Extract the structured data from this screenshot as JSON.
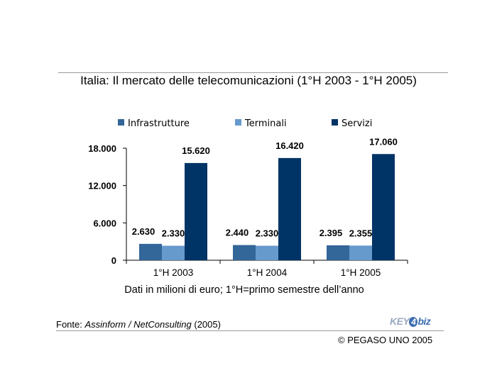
{
  "header": {
    "title": "Italia: Il mercato delle telecomunicazioni (1°H 2003 - 1°H 2005)"
  },
  "chart_data": {
    "type": "bar",
    "title": "Italia: Il mercato delle telecomunicazioni (1°H 2003 - 1°H 2005)",
    "subtitle": "Dati in milioni di euro; 1°H=primo semestre dell’anno",
    "categories": [
      "1°H 2003",
      "1°H 2004",
      "1°H 2005"
    ],
    "series": [
      {
        "name": "Infrastrutture",
        "values": [
          2630,
          2440,
          2395
        ],
        "labels": [
          "2.630",
          "2.440",
          "2.395"
        ],
        "color": "#336699"
      },
      {
        "name": "Terminali",
        "values": [
          2330,
          2330,
          2355
        ],
        "labels": [
          "2.330",
          "2.330",
          "2.355"
        ],
        "color": "#6699cc"
      },
      {
        "name": "Servizi",
        "values": [
          15620,
          16420,
          17060
        ],
        "labels": [
          "15.620",
          "16.420",
          "17.060"
        ],
        "color": "#003366"
      }
    ],
    "ylim": [
      0,
      18000
    ],
    "yticks": [
      0,
      6000,
      12000,
      18000
    ],
    "ytick_labels": [
      "0",
      "6.000",
      "12.000",
      "18.000"
    ],
    "xlabel": "",
    "ylabel": "",
    "grid": false,
    "legend": "top"
  },
  "footer": {
    "source_prefix": "Fonte: ",
    "source_italic": "Assinform / NetConsulting",
    "source_suffix": " (2005)",
    "logo_text": "KEY4biz",
    "copyright": "© PEGASO UNO 2005"
  }
}
